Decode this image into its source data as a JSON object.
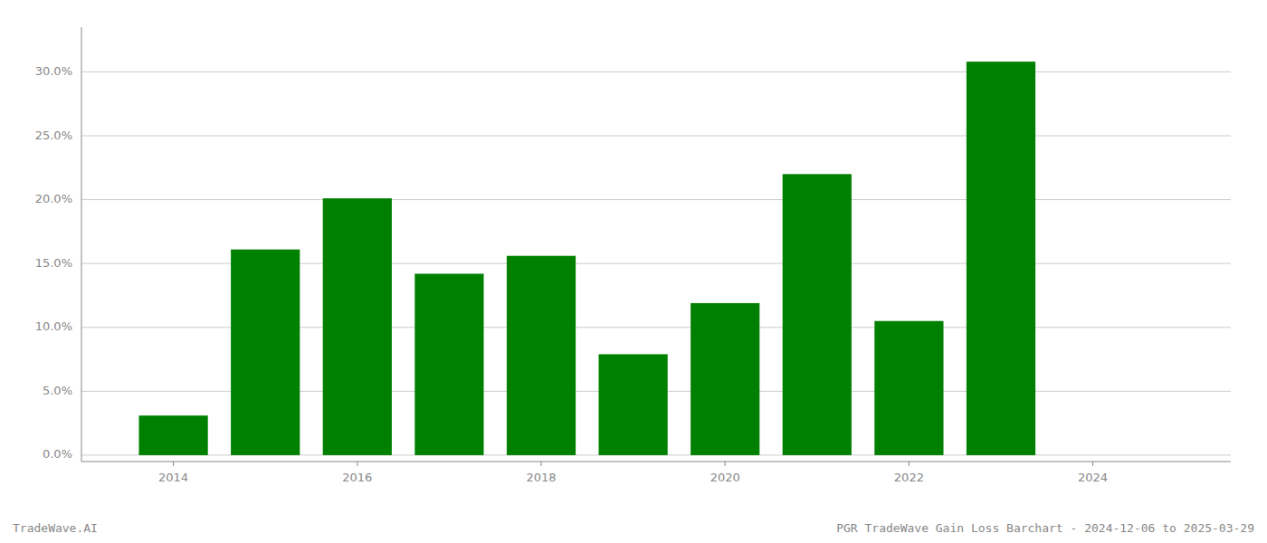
{
  "chart_data": {
    "type": "bar",
    "x": [
      2014,
      2015,
      2016,
      2017,
      2018,
      2019,
      2020,
      2021,
      2022,
      2023
    ],
    "values": [
      0.031,
      0.161,
      0.201,
      0.142,
      0.156,
      0.079,
      0.119,
      0.22,
      0.105,
      0.308
    ],
    "color": "#008000",
    "xlim": [
      2013.0,
      2025.5
    ],
    "xticks": [
      2014,
      2016,
      2018,
      2020,
      2022,
      2024
    ],
    "ylim": [
      -0.005,
      0.335
    ],
    "yticks": [
      {
        "value": 0.0,
        "label": "0.0%"
      },
      {
        "value": 0.05,
        "label": "5.0%"
      },
      {
        "value": 0.1,
        "label": "10.0%"
      },
      {
        "value": 0.15,
        "label": "15.0%"
      },
      {
        "value": 0.2,
        "label": "20.0%"
      },
      {
        "value": 0.25,
        "label": "25.0%"
      },
      {
        "value": 0.3,
        "label": "30.0%"
      }
    ],
    "grid": true,
    "annotations": [
      "TradeWave.AI",
      "PGR TradeWave Gain Loss Barchart - 2024-12-06 to 2025-03-29"
    ]
  }
}
